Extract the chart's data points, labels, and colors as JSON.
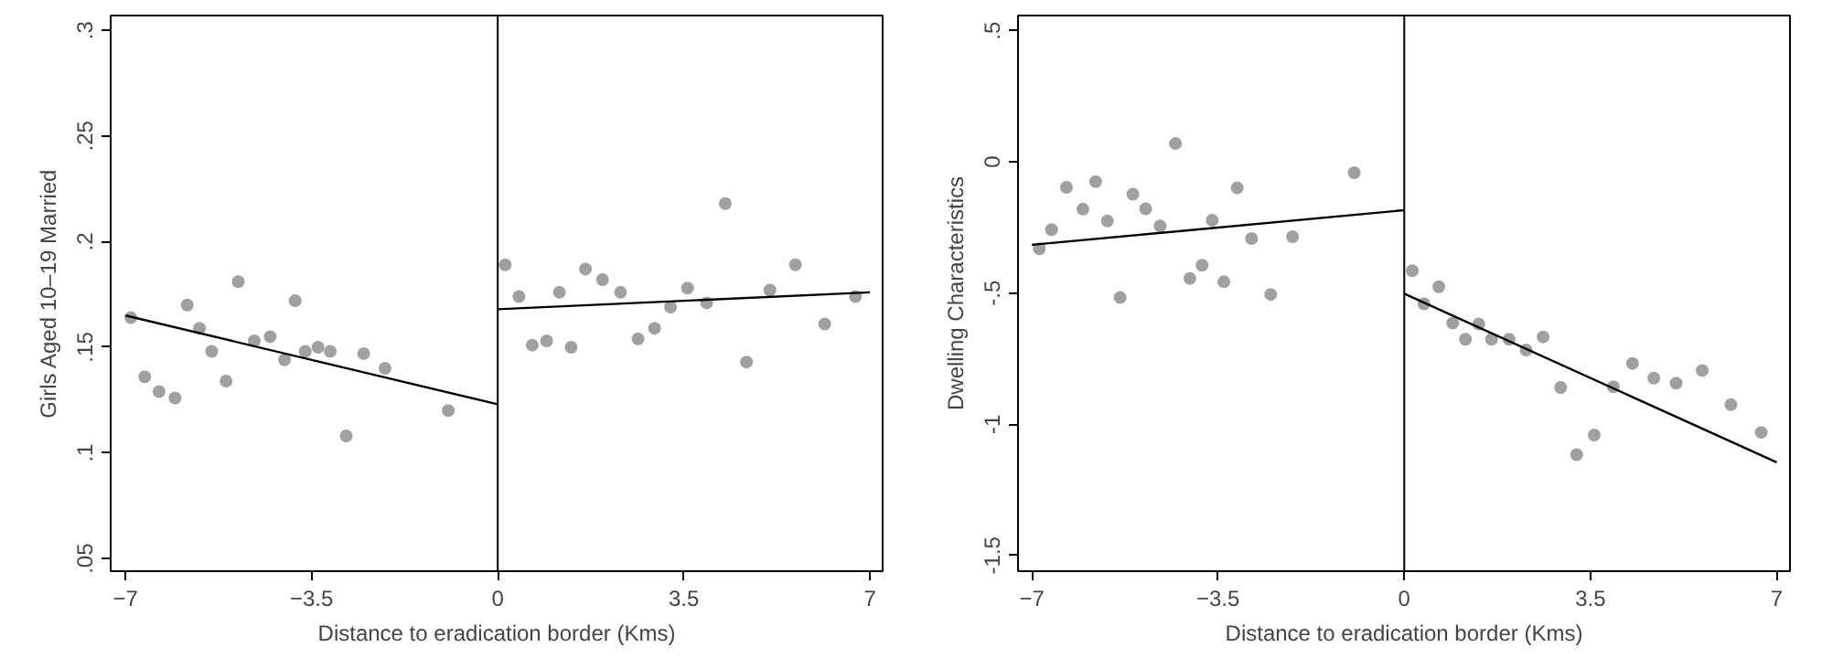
{
  "chart_data": [
    {
      "type": "scatter",
      "xlabel": "Distance to eradication border (Kms)",
      "ylabel": "Girls Aged 10–19 Married",
      "xlim": [
        -7.28,
        7.24
      ],
      "ylim": [
        0.044,
        0.307
      ],
      "xticks": [
        -7,
        -3.5,
        0,
        3.5,
        7
      ],
      "yticks": [
        {
          "value": 0.05,
          "label": ".05"
        },
        {
          "value": 0.1,
          "label": ".1"
        },
        {
          "value": 0.15,
          "label": ".15"
        },
        {
          "value": 0.2,
          "label": ".2"
        },
        {
          "value": 0.25,
          "label": ".25"
        },
        {
          "value": 0.3,
          "label": ".3"
        }
      ],
      "grid": false,
      "ref_lines": [
        {
          "axis": "x",
          "value": 0,
          "color": "#000000"
        }
      ],
      "series": [
        {
          "marker": "circle",
          "color": "#a0a0a0",
          "x": [
            -6.9,
            -6.64,
            -6.37,
            -6.07,
            -5.84,
            -5.61,
            -5.38,
            -5.11,
            -4.88,
            -4.58,
            -4.28,
            -4.01,
            -3.81,
            -3.62,
            -3.38,
            -3.15,
            -2.85,
            -2.52,
            -2.12,
            -0.93,
            0.14,
            0.4,
            0.65,
            0.92,
            1.16,
            1.38,
            1.65,
            1.97,
            2.31,
            2.64,
            2.95,
            3.25,
            3.57,
            3.93,
            4.28,
            4.68,
            5.12,
            5.6,
            6.15,
            6.73
          ],
          "values": [
            0.164,
            0.136,
            0.129,
            0.126,
            0.17,
            0.159,
            0.148,
            0.134,
            0.181,
            0.153,
            0.155,
            0.144,
            0.172,
            0.148,
            0.15,
            0.148,
            0.108,
            0.147,
            0.14,
            0.12,
            0.189,
            0.174,
            0.151,
            0.153,
            0.176,
            0.15,
            0.187,
            0.182,
            0.176,
            0.154,
            0.159,
            0.169,
            0.178,
            0.171,
            0.218,
            0.143,
            0.177,
            0.189,
            0.161,
            0.174
          ]
        },
        {
          "type": "line",
          "color": "#000000",
          "x": [
            -7,
            0
          ],
          "values": [
            0.165,
            0.123
          ]
        },
        {
          "type": "line",
          "color": "#000000",
          "x": [
            0,
            7
          ],
          "values": [
            0.168,
            0.176
          ]
        }
      ]
    },
    {
      "type": "scatter",
      "xlabel": "Distance to eradication border (Kms)",
      "ylabel": "Dwelling Characteristics",
      "xlim": [
        -7.26,
        7.25
      ],
      "ylim": [
        -1.56,
        0.558
      ],
      "xticks": [
        -7,
        -3.5,
        0,
        3.5,
        7
      ],
      "yticks": [
        {
          "value": -1.5,
          "label": "-1.5"
        },
        {
          "value": -1,
          "label": "-1"
        },
        {
          "value": -0.5,
          "label": "-.5"
        },
        0,
        {
          "value": 0.5,
          "label": ".5"
        }
      ],
      "grid": false,
      "ref_lines": [
        {
          "axis": "x",
          "value": 0,
          "color": "#000000"
        }
      ],
      "series": [
        {
          "marker": "circle",
          "color": "#a0a0a0",
          "x": [
            -6.86,
            -6.63,
            -6.35,
            -6.04,
            -5.8,
            -5.58,
            -5.34,
            -5.1,
            -4.86,
            -4.59,
            -4.3,
            -4.03,
            -3.8,
            -3.61,
            -3.39,
            -3.14,
            -2.87,
            -2.51,
            -2.1,
            -0.94,
            0.15,
            0.37,
            0.65,
            0.91,
            1.15,
            1.4,
            1.64,
            1.97,
            2.29,
            2.61,
            2.94,
            3.24,
            3.57,
            3.93,
            4.29,
            4.69,
            5.11,
            5.6,
            6.14,
            6.71
          ],
          "values": [
            -0.331,
            -0.258,
            -0.097,
            -0.18,
            -0.075,
            -0.225,
            -0.517,
            -0.123,
            -0.179,
            -0.244,
            0.07,
            -0.444,
            -0.394,
            -0.222,
            -0.457,
            -0.099,
            -0.292,
            -0.505,
            -0.285,
            -0.041,
            -0.415,
            -0.541,
            -0.476,
            -0.614,
            -0.676,
            -0.618,
            -0.676,
            -0.676,
            -0.717,
            -0.667,
            -0.86,
            -1.116,
            -1.041,
            -0.857,
            -0.768,
            -0.824,
            -0.843,
            -0.795,
            -0.925,
            -1.031
          ]
        },
        {
          "type": "line",
          "color": "#000000",
          "x": [
            -7,
            0
          ],
          "values": [
            -0.316,
            -0.184
          ]
        },
        {
          "type": "line",
          "color": "#000000",
          "x": [
            0,
            7
          ],
          "values": [
            -0.502,
            -1.145
          ]
        }
      ]
    }
  ]
}
